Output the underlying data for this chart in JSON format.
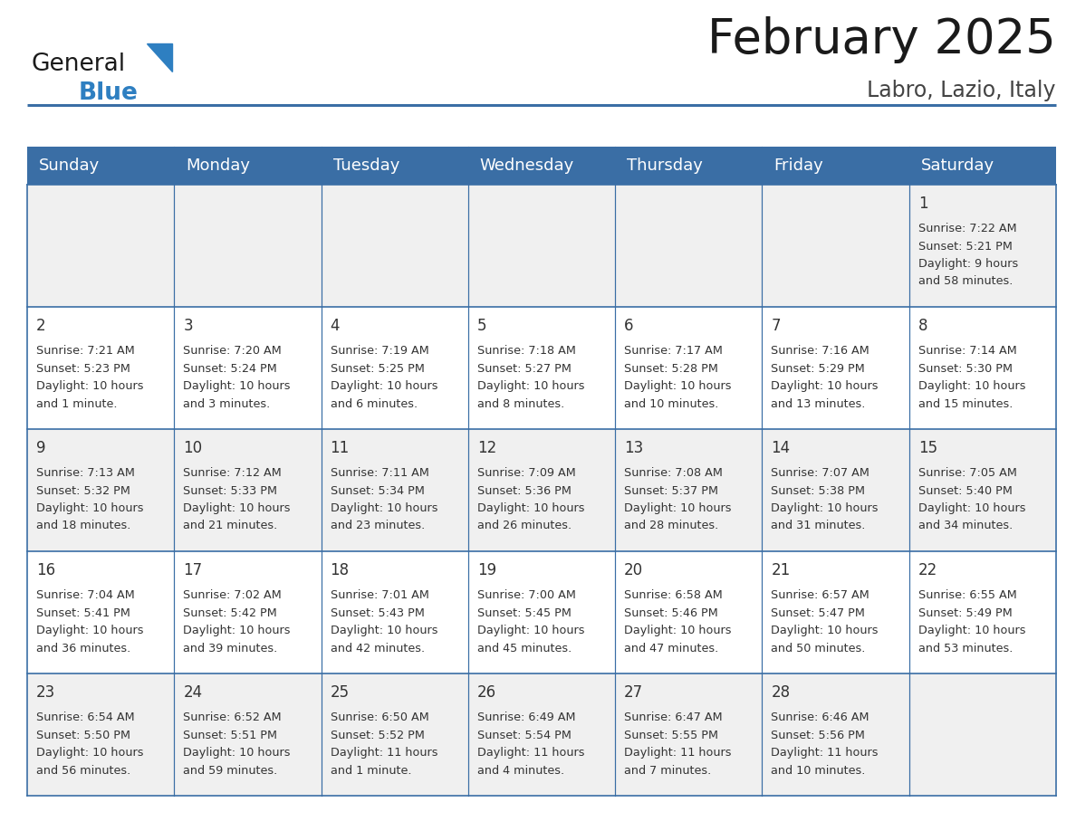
{
  "title": "February 2025",
  "subtitle": "Labro, Lazio, Italy",
  "header_color": "#3a6ea5",
  "header_text_color": "#ffffff",
  "cell_bg_even": "#f0f0f0",
  "cell_bg_odd": "#ffffff",
  "day_names": [
    "Sunday",
    "Monday",
    "Tuesday",
    "Wednesday",
    "Thursday",
    "Friday",
    "Saturday"
  ],
  "title_fontsize": 38,
  "subtitle_fontsize": 17,
  "header_fontsize": 13,
  "cell_fontsize": 9.2,
  "day_num_fontsize": 12,
  "logo_general_fontsize": 19,
  "logo_blue_fontsize": 19,
  "logo_color_general": "#1a1a1a",
  "logo_color_blue": "#2e7fc1",
  "logo_triangle_color": "#2e7fc1",
  "grid_line_color": "#3a6ea5",
  "title_color": "#1a1a1a",
  "subtitle_color": "#444444",
  "cell_text_color": "#333333",
  "calendar_data": [
    [
      null,
      null,
      null,
      null,
      null,
      null,
      {
        "day": 1,
        "sunrise": "7:22 AM",
        "sunset": "5:21 PM",
        "dl1": "Daylight: 9 hours",
        "dl2": "and 58 minutes."
      }
    ],
    [
      {
        "day": 2,
        "sunrise": "7:21 AM",
        "sunset": "5:23 PM",
        "dl1": "Daylight: 10 hours",
        "dl2": "and 1 minute."
      },
      {
        "day": 3,
        "sunrise": "7:20 AM",
        "sunset": "5:24 PM",
        "dl1": "Daylight: 10 hours",
        "dl2": "and 3 minutes."
      },
      {
        "day": 4,
        "sunrise": "7:19 AM",
        "sunset": "5:25 PM",
        "dl1": "Daylight: 10 hours",
        "dl2": "and 6 minutes."
      },
      {
        "day": 5,
        "sunrise": "7:18 AM",
        "sunset": "5:27 PM",
        "dl1": "Daylight: 10 hours",
        "dl2": "and 8 minutes."
      },
      {
        "day": 6,
        "sunrise": "7:17 AM",
        "sunset": "5:28 PM",
        "dl1": "Daylight: 10 hours",
        "dl2": "and 10 minutes."
      },
      {
        "day": 7,
        "sunrise": "7:16 AM",
        "sunset": "5:29 PM",
        "dl1": "Daylight: 10 hours",
        "dl2": "and 13 minutes."
      },
      {
        "day": 8,
        "sunrise": "7:14 AM",
        "sunset": "5:30 PM",
        "dl1": "Daylight: 10 hours",
        "dl2": "and 15 minutes."
      }
    ],
    [
      {
        "day": 9,
        "sunrise": "7:13 AM",
        "sunset": "5:32 PM",
        "dl1": "Daylight: 10 hours",
        "dl2": "and 18 minutes."
      },
      {
        "day": 10,
        "sunrise": "7:12 AM",
        "sunset": "5:33 PM",
        "dl1": "Daylight: 10 hours",
        "dl2": "and 21 minutes."
      },
      {
        "day": 11,
        "sunrise": "7:11 AM",
        "sunset": "5:34 PM",
        "dl1": "Daylight: 10 hours",
        "dl2": "and 23 minutes."
      },
      {
        "day": 12,
        "sunrise": "7:09 AM",
        "sunset": "5:36 PM",
        "dl1": "Daylight: 10 hours",
        "dl2": "and 26 minutes."
      },
      {
        "day": 13,
        "sunrise": "7:08 AM",
        "sunset": "5:37 PM",
        "dl1": "Daylight: 10 hours",
        "dl2": "and 28 minutes."
      },
      {
        "day": 14,
        "sunrise": "7:07 AM",
        "sunset": "5:38 PM",
        "dl1": "Daylight: 10 hours",
        "dl2": "and 31 minutes."
      },
      {
        "day": 15,
        "sunrise": "7:05 AM",
        "sunset": "5:40 PM",
        "dl1": "Daylight: 10 hours",
        "dl2": "and 34 minutes."
      }
    ],
    [
      {
        "day": 16,
        "sunrise": "7:04 AM",
        "sunset": "5:41 PM",
        "dl1": "Daylight: 10 hours",
        "dl2": "and 36 minutes."
      },
      {
        "day": 17,
        "sunrise": "7:02 AM",
        "sunset": "5:42 PM",
        "dl1": "Daylight: 10 hours",
        "dl2": "and 39 minutes."
      },
      {
        "day": 18,
        "sunrise": "7:01 AM",
        "sunset": "5:43 PM",
        "dl1": "Daylight: 10 hours",
        "dl2": "and 42 minutes."
      },
      {
        "day": 19,
        "sunrise": "7:00 AM",
        "sunset": "5:45 PM",
        "dl1": "Daylight: 10 hours",
        "dl2": "and 45 minutes."
      },
      {
        "day": 20,
        "sunrise": "6:58 AM",
        "sunset": "5:46 PM",
        "dl1": "Daylight: 10 hours",
        "dl2": "and 47 minutes."
      },
      {
        "day": 21,
        "sunrise": "6:57 AM",
        "sunset": "5:47 PM",
        "dl1": "Daylight: 10 hours",
        "dl2": "and 50 minutes."
      },
      {
        "day": 22,
        "sunrise": "6:55 AM",
        "sunset": "5:49 PM",
        "dl1": "Daylight: 10 hours",
        "dl2": "and 53 minutes."
      }
    ],
    [
      {
        "day": 23,
        "sunrise": "6:54 AM",
        "sunset": "5:50 PM",
        "dl1": "Daylight: 10 hours",
        "dl2": "and 56 minutes."
      },
      {
        "day": 24,
        "sunrise": "6:52 AM",
        "sunset": "5:51 PM",
        "dl1": "Daylight: 10 hours",
        "dl2": "and 59 minutes."
      },
      {
        "day": 25,
        "sunrise": "6:50 AM",
        "sunset": "5:52 PM",
        "dl1": "Daylight: 11 hours",
        "dl2": "and 1 minute."
      },
      {
        "day": 26,
        "sunrise": "6:49 AM",
        "sunset": "5:54 PM",
        "dl1": "Daylight: 11 hours",
        "dl2": "and 4 minutes."
      },
      {
        "day": 27,
        "sunrise": "6:47 AM",
        "sunset": "5:55 PM",
        "dl1": "Daylight: 11 hours",
        "dl2": "and 7 minutes."
      },
      {
        "day": 28,
        "sunrise": "6:46 AM",
        "sunset": "5:56 PM",
        "dl1": "Daylight: 11 hours",
        "dl2": "and 10 minutes."
      },
      null
    ]
  ]
}
